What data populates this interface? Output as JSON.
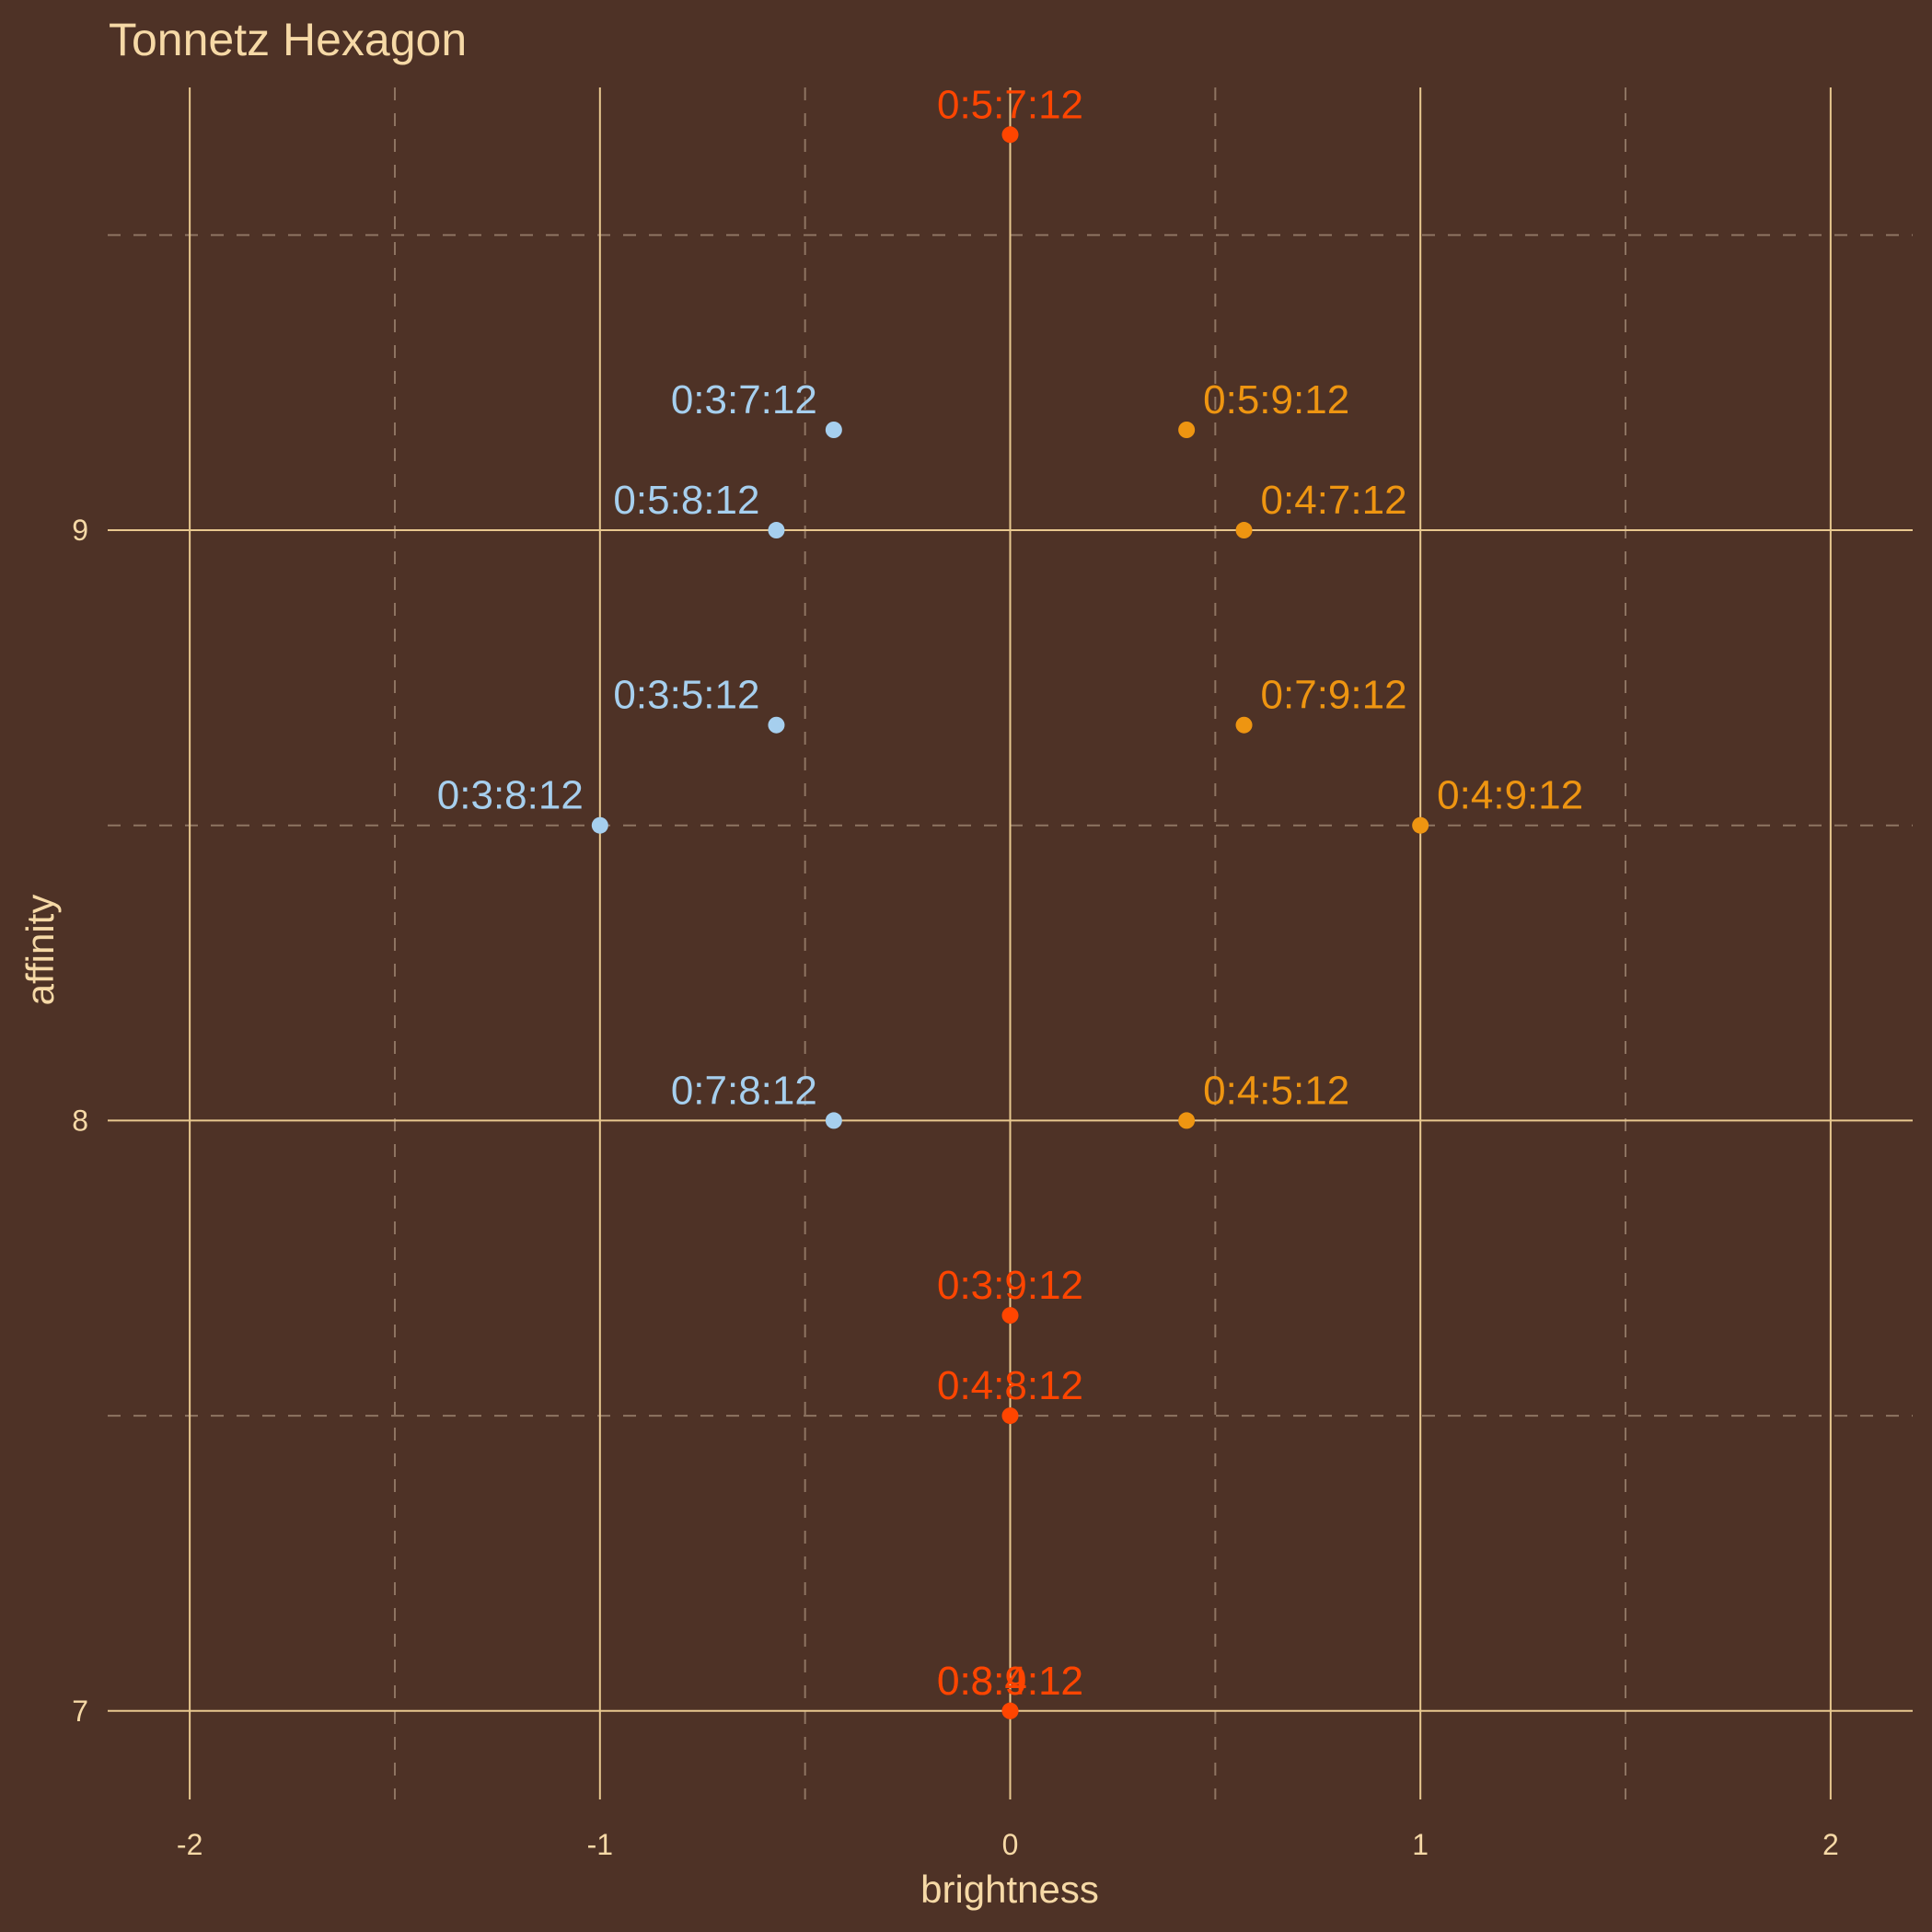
{
  "chart_data": {
    "type": "scatter",
    "title": "Tonnetz Hexagon",
    "xlabel": "brightness",
    "ylabel": "affinity",
    "xlim": [
      -2.2,
      2.2
    ],
    "ylim": [
      6.85,
      9.75
    ],
    "x_ticks": [
      -2,
      -1,
      0,
      1,
      2
    ],
    "x_tick_labels": [
      "-2",
      "-1",
      "0",
      "1",
      "2"
    ],
    "y_ticks": [
      7,
      8,
      9
    ],
    "y_tick_labels": [
      "7",
      "8",
      "9"
    ],
    "colors": {
      "background": "#4e3226",
      "text": "#f6d9a6",
      "minor_series": "#a6cfee",
      "major_series": "#ee9511",
      "center_series": "#ff4500"
    },
    "points": [
      {
        "label": "0:5:7:12",
        "x": 0,
        "y": 9.67,
        "group": "center",
        "align": "center"
      },
      {
        "label": "0:3:7:12",
        "x": -0.43,
        "y": 9.17,
        "group": "minor",
        "align": "left"
      },
      {
        "label": "0:5:9:12",
        "x": 0.43,
        "y": 9.17,
        "group": "major",
        "align": "right"
      },
      {
        "label": "0:5:8:12",
        "x": -0.57,
        "y": 9.0,
        "group": "minor",
        "align": "left"
      },
      {
        "label": "0:4:7:12",
        "x": 0.57,
        "y": 9.0,
        "group": "major",
        "align": "right"
      },
      {
        "label": "0:3:5:12",
        "x": -0.57,
        "y": 8.67,
        "group": "minor",
        "align": "left"
      },
      {
        "label": "0:7:9:12",
        "x": 0.57,
        "y": 8.67,
        "group": "major",
        "align": "right"
      },
      {
        "label": "0:3:8:12",
        "x": -1.0,
        "y": 8.5,
        "group": "minor",
        "align": "left"
      },
      {
        "label": "0:4:9:12",
        "x": 1.0,
        "y": 8.5,
        "group": "major",
        "align": "right"
      },
      {
        "label": "0:7:8:12",
        "x": -0.43,
        "y": 8.0,
        "group": "minor",
        "align": "left"
      },
      {
        "label": "0:4:5:12",
        "x": 0.43,
        "y": 8.0,
        "group": "major",
        "align": "right"
      },
      {
        "label": "0:3:9:12",
        "x": 0,
        "y": 7.67,
        "group": "center",
        "align": "center"
      },
      {
        "label": "0:4:8:12",
        "x": 0,
        "y": 7.5,
        "group": "center",
        "align": "center"
      },
      {
        "label": "0:8:9:12",
        "x": 0,
        "y": 7.0,
        "group": "center",
        "align": "center"
      },
      {
        "label": "0:3:4:12",
        "x": 0,
        "y": 7.0,
        "group": "center",
        "align": "center"
      }
    ]
  }
}
